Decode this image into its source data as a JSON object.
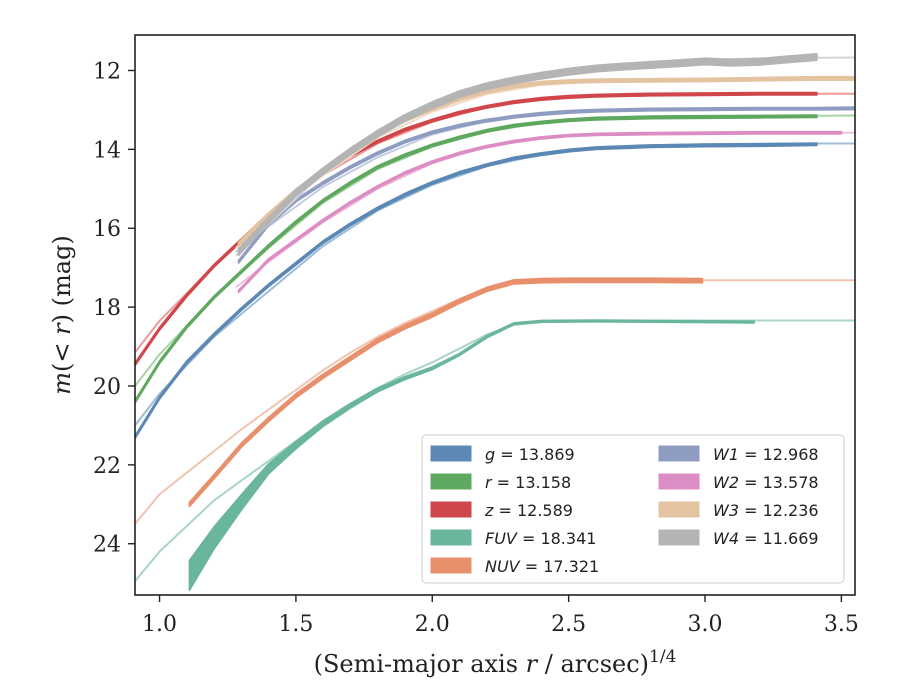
{
  "chart_data": {
    "type": "line",
    "title": "",
    "xlabel": "(Semi-major axis r / arcsec)",
    "xlabel_parts": {
      "pre": "(Semi-major axis ",
      "var": "r",
      "post": " / arcsec)",
      "sup": "1/4"
    },
    "ylabel": "m(< r) (mag)",
    "ylabel_parts": {
      "m": "m",
      "open": "(",
      "lt": "< ",
      "r": "r",
      "close": ")",
      "unit": " (mag)"
    },
    "xlim": [
      0.91,
      3.55
    ],
    "ylim": [
      25.3,
      11.1
    ],
    "y_inverted": true,
    "xticks": [
      1.0,
      1.5,
      2.0,
      2.5,
      3.0,
      3.5
    ],
    "xtick_labels": [
      "1.0",
      "1.5",
      "2.0",
      "2.5",
      "3.0",
      "3.5"
    ],
    "yticks": [
      12,
      14,
      16,
      18,
      20,
      22,
      24
    ],
    "ytick_labels": [
      "12",
      "14",
      "16",
      "18",
      "20",
      "22",
      "24"
    ],
    "grid": false,
    "legend": {
      "placement": "lower-right",
      "columns": 2
    },
    "series": [
      {
        "name": "g",
        "total_mag": "13.869",
        "color": "#5b88b4",
        "fit_color": "#9fbcd6",
        "x": [
          0.91,
          1.0,
          1.1,
          1.2,
          1.3,
          1.4,
          1.5,
          1.6,
          1.7,
          1.8,
          1.9,
          2.0,
          2.1,
          2.2,
          2.3,
          2.4,
          2.5,
          2.6,
          2.8,
          3.0,
          3.2,
          3.41
        ],
        "y": [
          21.3,
          20.3,
          19.4,
          18.7,
          18.05,
          17.45,
          16.9,
          16.35,
          15.9,
          15.5,
          15.15,
          14.85,
          14.6,
          14.4,
          14.23,
          14.12,
          14.03,
          13.97,
          13.92,
          13.9,
          13.89,
          13.87
        ],
        "band": 0.06,
        "fit_x": [
          0.91,
          1.0,
          1.2,
          1.4,
          1.6,
          1.8,
          2.0,
          2.2,
          2.4,
          2.6,
          2.8,
          3.0,
          3.2,
          3.4,
          3.55
        ],
        "fit_y": [
          21.0,
          20.2,
          18.75,
          17.6,
          16.45,
          15.55,
          14.9,
          14.43,
          14.13,
          13.98,
          13.9,
          13.87,
          13.86,
          13.85,
          13.85
        ]
      },
      {
        "name": "r",
        "total_mag": "13.158",
        "color": "#5fa85f",
        "fit_color": "#a8d3a3",
        "x": [
          0.91,
          1.0,
          1.1,
          1.2,
          1.3,
          1.4,
          1.5,
          1.6,
          1.7,
          1.8,
          1.9,
          2.0,
          2.1,
          2.2,
          2.3,
          2.4,
          2.5,
          2.6,
          2.8,
          3.0,
          3.2,
          3.41
        ],
        "y": [
          20.4,
          19.4,
          18.5,
          17.75,
          17.1,
          16.45,
          15.85,
          15.3,
          14.85,
          14.45,
          14.15,
          13.9,
          13.7,
          13.53,
          13.4,
          13.32,
          13.26,
          13.22,
          13.19,
          13.18,
          13.17,
          13.16
        ],
        "band": 0.06,
        "fit_x": [
          0.91,
          1.0,
          1.2,
          1.4,
          1.6,
          1.8,
          2.0,
          2.2,
          2.4,
          2.6,
          2.8,
          3.0,
          3.2,
          3.4,
          3.55
        ],
        "fit_y": [
          20.0,
          19.2,
          17.75,
          16.5,
          15.35,
          14.5,
          13.93,
          13.55,
          13.33,
          13.22,
          13.18,
          13.16,
          13.15,
          13.15,
          13.14
        ]
      },
      {
        "name": "z",
        "total_mag": "12.589",
        "color": "#d0464a",
        "fit_color": "#ea9c9b",
        "x": [
          0.91,
          1.0,
          1.1,
          1.2,
          1.3,
          1.4,
          1.5,
          1.6,
          1.7,
          1.8,
          1.9,
          2.0,
          2.1,
          2.2,
          2.3,
          2.4,
          2.5,
          2.6,
          2.8,
          3.0,
          3.2,
          3.41
        ],
        "y": [
          19.45,
          18.55,
          17.7,
          16.95,
          16.3,
          15.65,
          15.1,
          14.6,
          14.15,
          13.8,
          13.5,
          13.27,
          13.07,
          12.92,
          12.8,
          12.72,
          12.67,
          12.64,
          12.61,
          12.6,
          12.59,
          12.59
        ],
        "band": 0.06,
        "fit_x": [
          0.91,
          1.0,
          1.2,
          1.4,
          1.6,
          1.8,
          2.0,
          2.2,
          2.4,
          2.6,
          2.8,
          3.0,
          3.2,
          3.4,
          3.55
        ],
        "fit_y": [
          19.15,
          18.35,
          16.95,
          15.7,
          14.65,
          13.85,
          13.3,
          12.93,
          12.73,
          12.64,
          12.61,
          12.6,
          12.59,
          12.59,
          12.59
        ]
      },
      {
        "name": "FUV",
        "total_mag": "18.341",
        "color": "#6ab69c",
        "fit_color": "#a9d5c4",
        "x": [
          1.11,
          1.2,
          1.3,
          1.4,
          1.5,
          1.6,
          1.7,
          1.8,
          1.9,
          2.0,
          2.1,
          2.2,
          2.3,
          2.4,
          2.5,
          2.6,
          2.8,
          3.0,
          3.18
        ],
        "y": [
          24.8,
          23.85,
          22.95,
          22.1,
          21.5,
          20.95,
          20.5,
          20.1,
          19.8,
          19.55,
          19.2,
          18.75,
          18.42,
          18.36,
          18.35,
          18.35,
          18.34,
          18.36,
          18.38
        ],
        "band_x": [
          1.11,
          1.2,
          1.3,
          1.4,
          1.5,
          1.6,
          1.7,
          1.8,
          1.9,
          2.0,
          2.1,
          2.2,
          2.3,
          2.4,
          2.6,
          3.18
        ],
        "band_w": [
          0.75,
          0.55,
          0.38,
          0.25,
          0.18,
          0.14,
          0.11,
          0.09,
          0.07,
          0.06,
          0.05,
          0.05,
          0.04,
          0.04,
          0.04,
          0.04
        ],
        "fit_x": [
          0.91,
          1.0,
          1.1,
          1.2,
          1.3,
          1.4,
          1.5,
          1.6,
          1.7,
          1.8,
          1.9,
          2.0,
          2.1,
          2.2,
          2.3,
          2.4,
          2.6,
          2.8,
          3.0,
          3.2,
          3.55
        ],
        "fit_y": [
          24.95,
          24.2,
          23.55,
          22.9,
          22.4,
          21.9,
          21.4,
          20.9,
          20.45,
          20.05,
          19.7,
          19.4,
          19.05,
          18.7,
          18.45,
          18.38,
          18.35,
          18.34,
          18.34,
          18.34,
          18.34
        ]
      },
      {
        "name": "NUV",
        "total_mag": "17.321",
        "color": "#e8906c",
        "fit_color": "#f3c3ae",
        "x": [
          1.11,
          1.2,
          1.3,
          1.4,
          1.5,
          1.6,
          1.7,
          1.8,
          1.9,
          2.0,
          2.1,
          2.2,
          2.3,
          2.4,
          2.5,
          2.6,
          2.8,
          2.99
        ],
        "y": [
          23.0,
          22.3,
          21.5,
          20.85,
          20.25,
          19.75,
          19.3,
          18.85,
          18.5,
          18.2,
          17.85,
          17.55,
          17.36,
          17.33,
          17.32,
          17.32,
          17.32,
          17.33
        ],
        "band": 0.1,
        "fit_x": [
          0.91,
          1.0,
          1.1,
          1.2,
          1.3,
          1.4,
          1.5,
          1.6,
          1.7,
          1.8,
          1.9,
          2.0,
          2.1,
          2.2,
          2.3,
          2.4,
          2.6,
          2.8,
          3.0,
          3.2,
          3.55
        ],
        "fit_y": [
          23.5,
          22.75,
          22.2,
          21.65,
          21.1,
          20.6,
          20.1,
          19.6,
          19.15,
          18.75,
          18.4,
          18.1,
          17.8,
          17.52,
          17.37,
          17.33,
          17.32,
          17.32,
          17.32,
          17.32,
          17.32
        ]
      },
      {
        "name": "W1",
        "total_mag": "12.968",
        "color": "#8e9cc2",
        "fit_color": "#c2cbe0",
        "x": [
          1.29,
          1.4,
          1.5,
          1.6,
          1.7,
          1.8,
          1.9,
          2.0,
          2.1,
          2.2,
          2.3,
          2.4,
          2.5,
          2.6,
          2.8,
          3.0,
          3.2,
          3.41,
          3.55
        ],
        "y": [
          16.85,
          15.9,
          15.3,
          14.85,
          14.45,
          14.1,
          13.8,
          13.57,
          13.4,
          13.27,
          13.17,
          13.1,
          13.05,
          13.02,
          12.99,
          12.98,
          12.97,
          12.97,
          12.96
        ],
        "band": 0.06,
        "fit_x": [
          1.28,
          1.4,
          1.6,
          1.8,
          2.0,
          2.2,
          2.4,
          2.6,
          2.8,
          3.0,
          3.2,
          3.55
        ],
        "fit_y": [
          16.6,
          15.95,
          14.95,
          14.2,
          13.62,
          13.28,
          13.1,
          13.02,
          12.99,
          12.98,
          12.97,
          12.97
        ]
      },
      {
        "name": "W2",
        "total_mag": "13.578",
        "color": "#db8dc4",
        "fit_color": "#efc0df",
        "x": [
          1.29,
          1.4,
          1.5,
          1.6,
          1.7,
          1.8,
          1.9,
          2.0,
          2.1,
          2.2,
          2.3,
          2.4,
          2.5,
          2.6,
          2.8,
          3.0,
          3.2,
          3.5
        ],
        "y": [
          17.6,
          16.8,
          16.3,
          15.8,
          15.35,
          14.95,
          14.6,
          14.32,
          14.1,
          13.93,
          13.8,
          13.71,
          13.65,
          13.62,
          13.6,
          13.59,
          13.58,
          13.58
        ],
        "band": 0.05,
        "fit_x": [
          1.28,
          1.4,
          1.6,
          1.8,
          2.0,
          2.2,
          2.4,
          2.6,
          2.8,
          3.0,
          3.2,
          3.55
        ],
        "fit_y": [
          17.5,
          16.85,
          15.85,
          15.0,
          14.35,
          13.93,
          13.72,
          13.62,
          13.59,
          13.58,
          13.58,
          13.58
        ]
      },
      {
        "name": "W3",
        "total_mag": "12.236",
        "color": "#e4c3a0",
        "fit_color": "#f0dcc6",
        "x": [
          1.29,
          1.4,
          1.5,
          1.6,
          1.7,
          1.8,
          1.9,
          2.0,
          2.1,
          2.2,
          2.3,
          2.4,
          2.5,
          2.6,
          2.8,
          3.0,
          3.2,
          3.41,
          3.55
        ],
        "y": [
          16.4,
          15.65,
          15.05,
          14.55,
          14.05,
          13.6,
          13.25,
          12.97,
          12.72,
          12.53,
          12.4,
          12.32,
          12.28,
          12.26,
          12.25,
          12.24,
          12.22,
          12.2,
          12.2
        ],
        "band": 0.08,
        "fit_x": [
          1.28,
          1.4,
          1.6,
          1.8,
          2.0,
          2.2,
          2.4,
          2.6,
          2.8,
          3.0,
          3.2,
          3.55
        ],
        "fit_y": [
          16.5,
          15.75,
          14.65,
          13.7,
          13.05,
          12.6,
          12.36,
          12.27,
          12.25,
          12.24,
          12.24,
          12.24
        ]
      },
      {
        "name": "W4",
        "total_mag": "11.669",
        "color": "#b4b4b4",
        "fit_color": "#d6d6d6",
        "x": [
          1.29,
          1.4,
          1.5,
          1.6,
          1.7,
          1.8,
          1.9,
          2.0,
          2.1,
          2.2,
          2.3,
          2.4,
          2.5,
          2.6,
          2.7,
          2.8,
          2.9,
          3.0,
          3.1,
          3.2,
          3.3,
          3.41
        ],
        "y": [
          16.6,
          15.8,
          15.1,
          14.55,
          14.05,
          13.6,
          13.2,
          12.88,
          12.6,
          12.4,
          12.25,
          12.13,
          12.03,
          11.95,
          11.9,
          11.86,
          11.82,
          11.77,
          11.8,
          11.78,
          11.72,
          11.66
        ],
        "band": 0.16,
        "fit_x": [
          1.28,
          1.4,
          1.6,
          1.8,
          2.0,
          2.2,
          2.4,
          2.6,
          2.8,
          3.0,
          3.2,
          3.55
        ],
        "fit_y": [
          16.7,
          15.9,
          14.6,
          13.6,
          12.9,
          12.42,
          12.13,
          11.93,
          11.8,
          11.73,
          11.69,
          11.67
        ]
      }
    ]
  }
}
